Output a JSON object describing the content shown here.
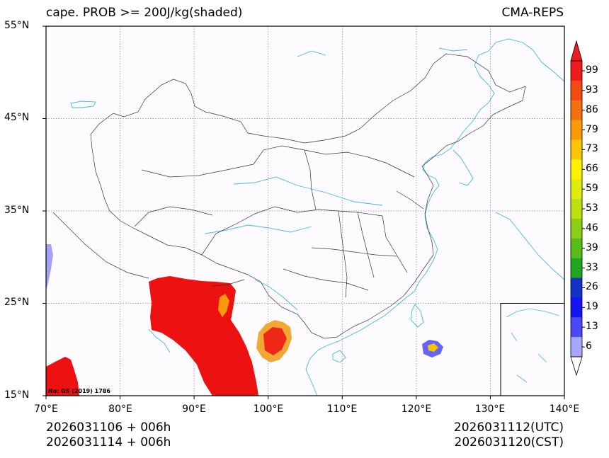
{
  "header": {
    "title_left": "cape. PROB >= 200J/kg(shaded)",
    "title_right": "CMA-REPS"
  },
  "axes": {
    "lat_labels": [
      "55°N",
      "45°N",
      "35°N",
      "25°N",
      "15°N"
    ],
    "lon_labels": [
      "70°E",
      "80°E",
      "90°E",
      "100°E",
      "110°E",
      "120°E",
      "130°E",
      "140°E"
    ]
  },
  "map": {
    "lat_range": [
      15,
      55
    ],
    "lon_range": [
      70,
      140
    ],
    "approval_no": "No: GS (2019) 1786",
    "coast_color": "#3fb8e6",
    "border_color": "#333333",
    "high_prob_color": "#ee1111"
  },
  "colorbar": {
    "levels": [
      "99",
      "93",
      "86",
      "79",
      "73",
      "66",
      "59",
      "53",
      "46",
      "39",
      "33",
      "26",
      "19",
      "13",
      "6"
    ],
    "colors": [
      "#ee1c1c",
      "#f24a12",
      "#f5700e",
      "#f99a08",
      "#fcc505",
      "#fef200",
      "#e0ec10",
      "#bce010",
      "#8ccd16",
      "#56bc1c",
      "#22a622",
      "#1232c8",
      "#1414f0",
      "#4a4af2",
      "#a6a6fa"
    ]
  },
  "footer": {
    "left_line1": "2026031106  +  006h",
    "left_line2": "2026031114  +  006h",
    "right_line1": "2026031112(UTC)",
    "right_line2": "2026031120(CST)"
  }
}
